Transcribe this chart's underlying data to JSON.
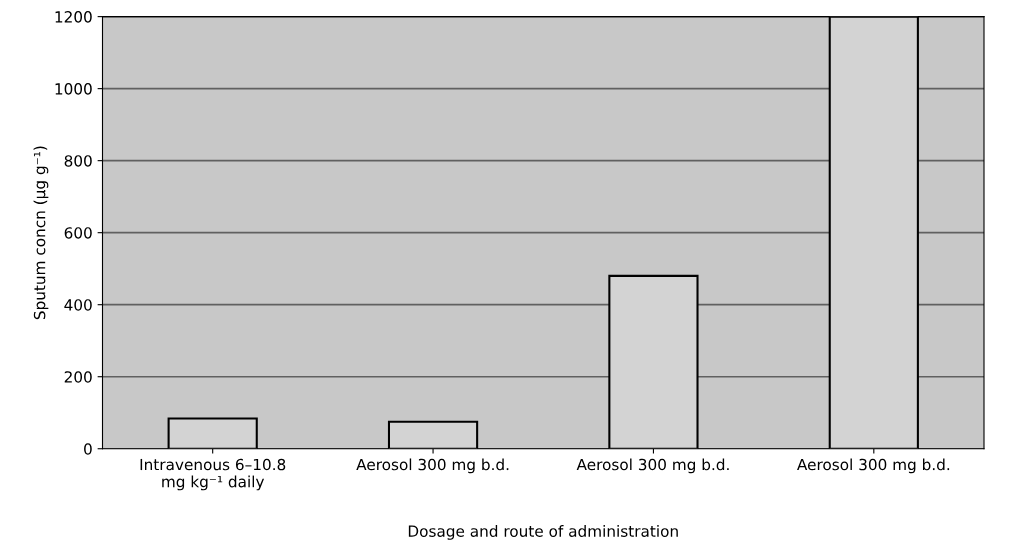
{
  "chart_data": {
    "type": "bar",
    "xlabel": "Dosage and route of administration",
    "ylabel": "Sputum concn (μg g⁻¹)",
    "categories": [
      "Intravenous 6–10.8\nmg kg⁻¹ daily",
      "Aerosol 300 mg b.d.",
      "Aerosol 300 mg b.d.",
      "Aerosol 300 mg b.d."
    ],
    "values": [
      84,
      75,
      480,
      1200
    ],
    "color": "#d3d3d3",
    "ylim": [
      0,
      1200
    ],
    "yticks": [
      0,
      200,
      400,
      600,
      800,
      1000,
      1200
    ],
    "grid": "y"
  }
}
